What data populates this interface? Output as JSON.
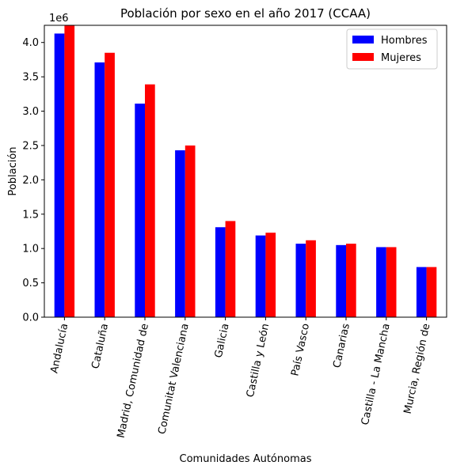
{
  "chart_data": {
    "type": "bar",
    "title": "Población por sexo en el año 2017 (CCAA)",
    "xlabel": "Comunidades Autónomas",
    "ylabel": "Población",
    "offset_text": "1e6",
    "categories": [
      "Andalucía",
      "Cataluña",
      "Madrid, Comunidad de",
      "Comunitat Valenciana",
      "Galicia",
      "Castilla y León",
      "País Vasco",
      "Canarias",
      "Castilla - La Mancha",
      "Murcia, Región de"
    ],
    "series": [
      {
        "name": "Hombres",
        "color": "#0000ff",
        "values": [
          4.13,
          3.71,
          3.11,
          2.43,
          1.31,
          1.19,
          1.07,
          1.05,
          1.02,
          0.73
        ]
      },
      {
        "name": "Mujeres",
        "color": "#ff0000",
        "values": [
          4.25,
          3.85,
          3.39,
          2.5,
          1.4,
          1.23,
          1.12,
          1.07,
          1.02,
          0.73
        ]
      }
    ],
    "ylim": [
      0,
      4.25
    ],
    "yticks": [
      "0.0",
      "0.5",
      "1.0",
      "1.5",
      "2.0",
      "2.5",
      "3.0",
      "3.5",
      "4.0"
    ],
    "grid": false,
    "legend_position": "top-right"
  }
}
